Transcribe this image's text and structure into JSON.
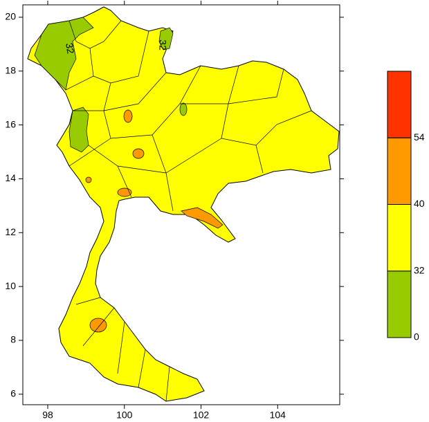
{
  "chart_data": {
    "type": "contour-map",
    "xlim": [
      97.35,
      105.62
    ],
    "ylim": [
      5.61,
      20.46
    ],
    "xticks": [
      98,
      100,
      102,
      104
    ],
    "yticks": [
      6,
      8,
      10,
      12,
      14,
      16,
      18,
      20
    ],
    "colorbar": {
      "levels": [
        0,
        32,
        40,
        54
      ],
      "colors": [
        "#99cc00",
        "#ffff00",
        "#ff9900",
        "#ff3300"
      ]
    },
    "contour_labels": [
      "32",
      "32"
    ]
  }
}
